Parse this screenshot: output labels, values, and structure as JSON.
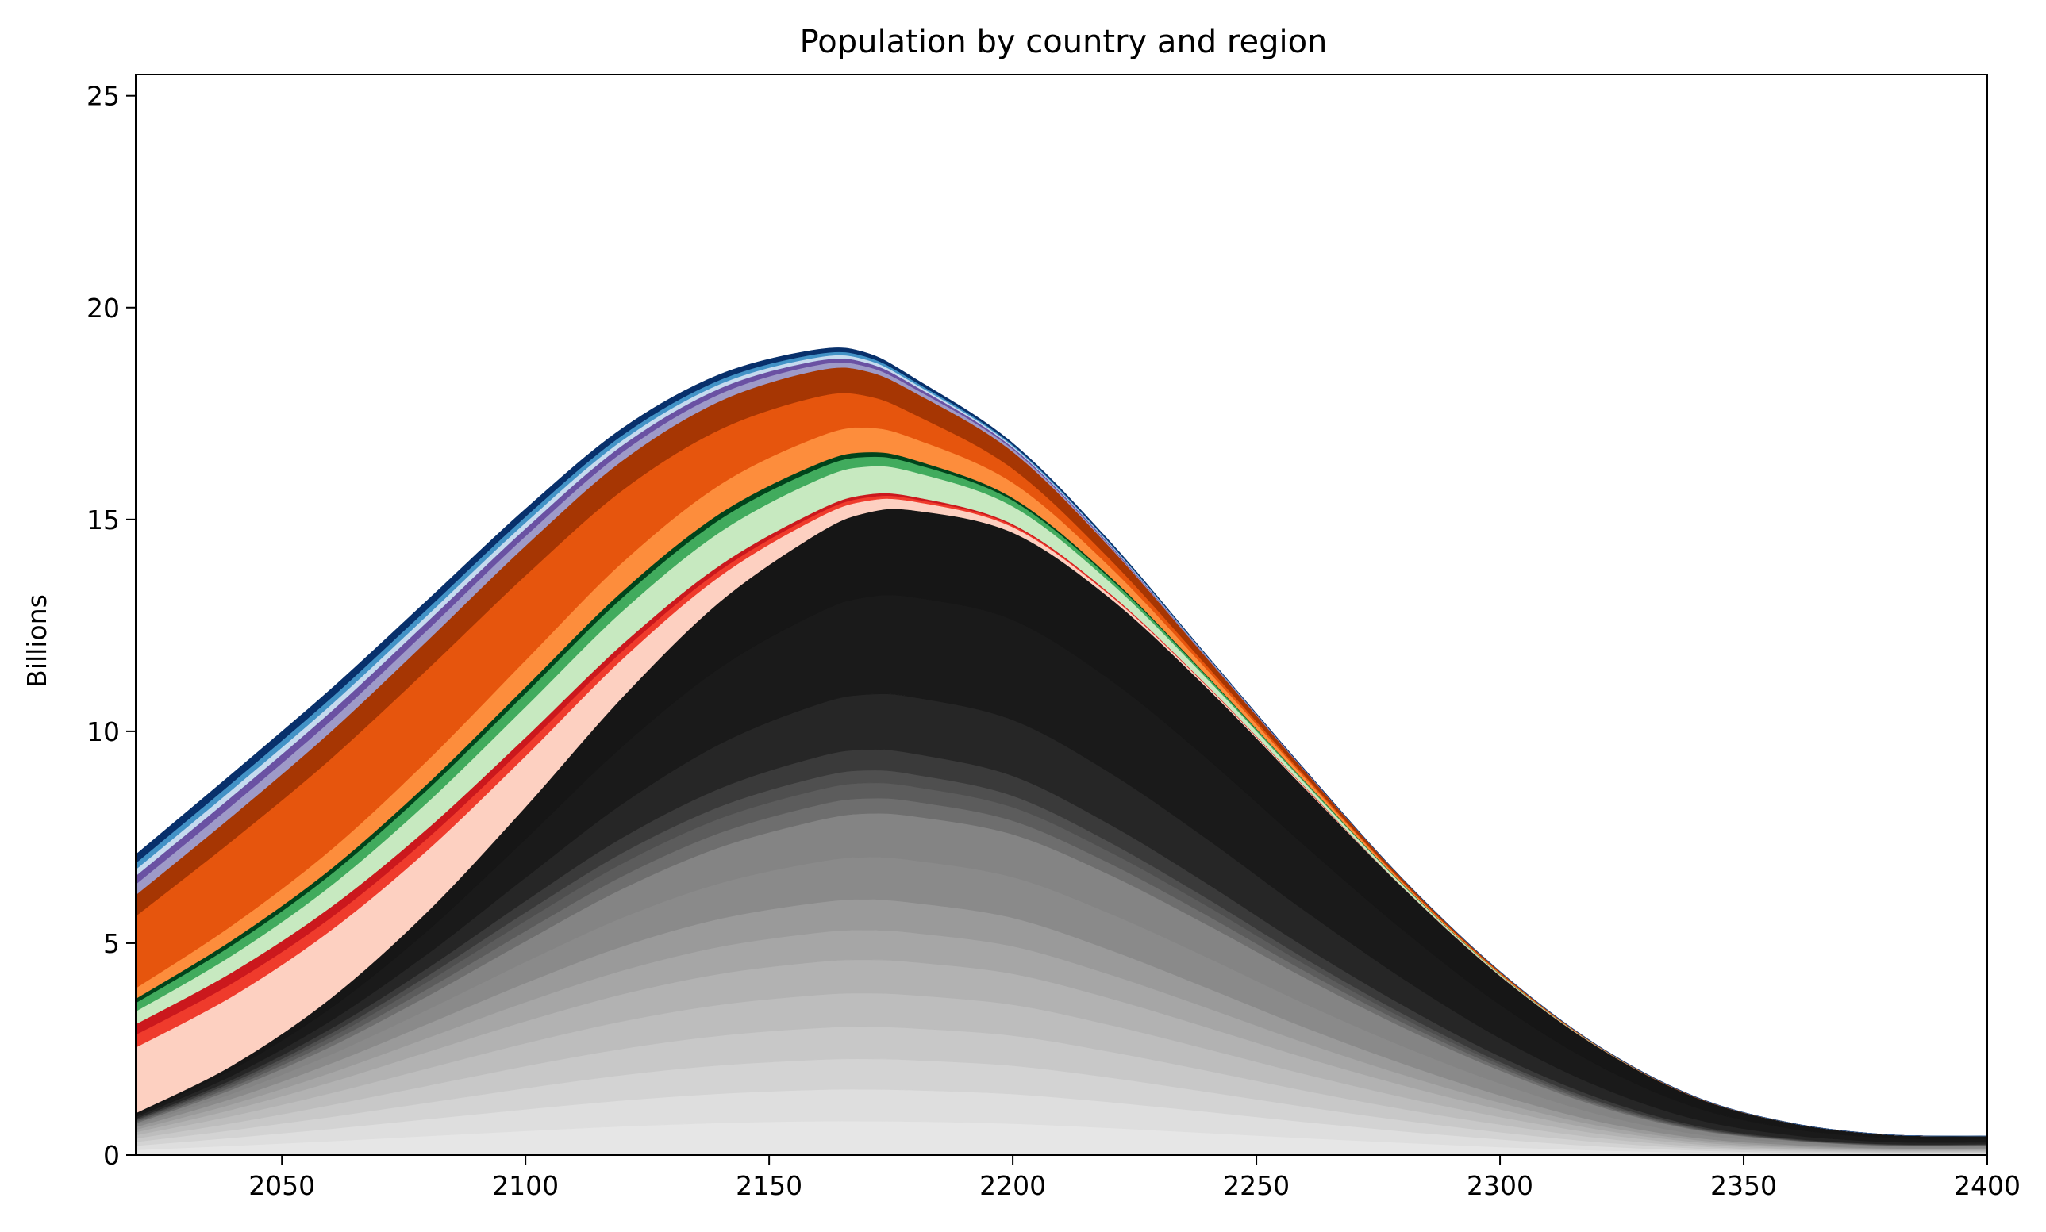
{
  "chart_data": {
    "type": "area",
    "stacked": true,
    "title": "Population by country and region",
    "xlabel": "",
    "ylabel": "Billions",
    "xlim": [
      2020,
      2400
    ],
    "ylim": [
      0,
      25.5
    ],
    "xticks": [
      2050,
      2100,
      2150,
      2200,
      2250,
      2300,
      2350,
      2400
    ],
    "yticks": [
      0,
      5,
      10,
      15,
      20,
      25
    ],
    "grid": false,
    "x": [
      2020,
      2040,
      2060,
      2080,
      2100,
      2120,
      2140,
      2160,
      2170,
      2180,
      2200,
      2220,
      2240,
      2260,
      2280,
      2300,
      2320,
      2340,
      2360,
      2380,
      2400
    ],
    "series": [
      {
        "color": "#e6e6e6",
        "values": [
          0.12,
          0.22,
          0.33,
          0.45,
          0.57,
          0.68,
          0.76,
          0.8,
          0.8,
          0.79,
          0.74,
          0.64,
          0.52,
          0.4,
          0.29,
          0.19,
          0.11,
          0.06,
          0.03,
          0.02,
          0.02
        ]
      },
      {
        "color": "#dedede",
        "values": [
          0.1,
          0.19,
          0.29,
          0.4,
          0.51,
          0.61,
          0.69,
          0.74,
          0.75,
          0.74,
          0.7,
          0.61,
          0.5,
          0.38,
          0.27,
          0.18,
          0.1,
          0.05,
          0.03,
          0.02,
          0.02
        ]
      },
      {
        "color": "#d3d3d3",
        "values": [
          0.09,
          0.18,
          0.28,
          0.39,
          0.5,
          0.6,
          0.67,
          0.71,
          0.72,
          0.71,
          0.67,
          0.58,
          0.47,
          0.36,
          0.26,
          0.17,
          0.1,
          0.05,
          0.03,
          0.02,
          0.02
        ]
      },
      {
        "color": "#c8c8c8",
        "values": [
          0.08,
          0.17,
          0.28,
          0.4,
          0.52,
          0.62,
          0.7,
          0.75,
          0.76,
          0.75,
          0.71,
          0.61,
          0.5,
          0.38,
          0.27,
          0.18,
          0.1,
          0.05,
          0.03,
          0.02,
          0.02
        ]
      },
      {
        "color": "#bdbdbd",
        "values": [
          0.08,
          0.17,
          0.28,
          0.41,
          0.54,
          0.65,
          0.73,
          0.78,
          0.79,
          0.78,
          0.73,
          0.63,
          0.51,
          0.39,
          0.28,
          0.18,
          0.1,
          0.05,
          0.03,
          0.02,
          0.02
        ]
      },
      {
        "color": "#b2b2b2",
        "values": [
          0.07,
          0.15,
          0.26,
          0.39,
          0.52,
          0.64,
          0.73,
          0.78,
          0.79,
          0.78,
          0.73,
          0.63,
          0.51,
          0.39,
          0.28,
          0.18,
          0.1,
          0.05,
          0.03,
          0.02,
          0.02
        ]
      },
      {
        "color": "#a6a6a6",
        "values": [
          0.06,
          0.13,
          0.22,
          0.33,
          0.45,
          0.56,
          0.64,
          0.69,
          0.7,
          0.69,
          0.65,
          0.56,
          0.46,
          0.35,
          0.25,
          0.16,
          0.09,
          0.05,
          0.03,
          0.02,
          0.02
        ]
      },
      {
        "color": "#9a9a9a",
        "values": [
          0.06,
          0.13,
          0.22,
          0.33,
          0.45,
          0.57,
          0.66,
          0.71,
          0.72,
          0.71,
          0.67,
          0.58,
          0.47,
          0.36,
          0.26,
          0.17,
          0.1,
          0.05,
          0.03,
          0.02,
          0.02
        ]
      },
      {
        "color": "#8a8a8a",
        "values": [
          0.05,
          0.12,
          0.21,
          0.34,
          0.5,
          0.68,
          0.84,
          0.96,
          1.0,
          1.0,
          0.96,
          0.86,
          0.72,
          0.56,
          0.41,
          0.28,
          0.17,
          0.09,
          0.05,
          0.03,
          0.03
        ]
      },
      {
        "color": "#848484",
        "values": [
          0.04,
          0.1,
          0.19,
          0.32,
          0.49,
          0.68,
          0.85,
          0.98,
          1.03,
          1.04,
          1.01,
          0.91,
          0.77,
          0.61,
          0.45,
          0.31,
          0.19,
          0.1,
          0.05,
          0.03,
          0.03
        ]
      },
      {
        "color": "#6e6e6e",
        "values": [
          0.03,
          0.06,
          0.11,
          0.17,
          0.24,
          0.3,
          0.34,
          0.36,
          0.36,
          0.35,
          0.32,
          0.27,
          0.22,
          0.16,
          0.11,
          0.07,
          0.04,
          0.02,
          0.01,
          0.01,
          0.01
        ]
      },
      {
        "color": "#5c5c5c",
        "values": [
          0.03,
          0.06,
          0.11,
          0.17,
          0.24,
          0.3,
          0.34,
          0.36,
          0.36,
          0.35,
          0.32,
          0.27,
          0.22,
          0.16,
          0.11,
          0.07,
          0.04,
          0.02,
          0.01,
          0.01,
          0.01
        ]
      },
      {
        "color": "#4f4f4f",
        "values": [
          0.02,
          0.05,
          0.09,
          0.14,
          0.2,
          0.25,
          0.28,
          0.3,
          0.3,
          0.29,
          0.27,
          0.23,
          0.18,
          0.14,
          0.1,
          0.06,
          0.04,
          0.02,
          0.01,
          0.01,
          0.01
        ]
      },
      {
        "color": "#3a3a3a",
        "values": [
          0.03,
          0.06,
          0.11,
          0.18,
          0.27,
          0.36,
          0.43,
          0.48,
          0.49,
          0.49,
          0.47,
          0.42,
          0.35,
          0.27,
          0.2,
          0.13,
          0.08,
          0.04,
          0.02,
          0.01,
          0.01
        ]
      },
      {
        "color": "#262626",
        "values": [
          0.04,
          0.1,
          0.19,
          0.34,
          0.55,
          0.8,
          1.05,
          1.24,
          1.3,
          1.33,
          1.32,
          1.22,
          1.05,
          0.85,
          0.63,
          0.43,
          0.27,
          0.15,
          0.08,
          0.05,
          0.04
        ]
      },
      {
        "color": "#1a1a1a",
        "values": [
          0.05,
          0.14,
          0.3,
          0.55,
          0.91,
          1.36,
          1.8,
          2.16,
          2.3,
          2.36,
          2.36,
          2.2,
          1.9,
          1.54,
          1.15,
          0.79,
          0.5,
          0.28,
          0.15,
          0.09,
          0.08
        ]
      },
      {
        "color": "#161616",
        "values": [
          0.04,
          0.1,
          0.23,
          0.45,
          0.76,
          1.16,
          1.56,
          1.87,
          1.99,
          2.05,
          2.06,
          1.92,
          1.66,
          1.35,
          1.0,
          0.68,
          0.43,
          0.24,
          0.13,
          0.08,
          0.07
        ]
      },
      {
        "color": "#fdd0c1",
        "values": [
          1.55,
          1.63,
          1.6,
          1.45,
          1.2,
          0.9,
          0.6,
          0.37,
          0.28,
          0.21,
          0.13,
          0.07,
          0.04,
          0.02,
          0.01,
          0.01,
          0.0,
          0.0,
          0.0,
          0.0,
          0.0
        ]
      },
      {
        "color": "#ef3b2c",
        "values": [
          0.3,
          0.31,
          0.3,
          0.28,
          0.24,
          0.19,
          0.14,
          0.1,
          0.08,
          0.06,
          0.04,
          0.02,
          0.01,
          0.01,
          0.0,
          0.0,
          0.0,
          0.0,
          0.0,
          0.0,
          0.0
        ]
      },
      {
        "color": "#cb181d",
        "values": [
          0.25,
          0.26,
          0.25,
          0.23,
          0.2,
          0.16,
          0.12,
          0.08,
          0.07,
          0.05,
          0.03,
          0.02,
          0.01,
          0.01,
          0.0,
          0.0,
          0.0,
          0.0,
          0.0,
          0.0,
          0.0
        ]
      },
      {
        "color": "#c7e9c0",
        "values": [
          0.3,
          0.4,
          0.5,
          0.62,
          0.72,
          0.78,
          0.78,
          0.72,
          0.66,
          0.58,
          0.42,
          0.27,
          0.16,
          0.09,
          0.05,
          0.02,
          0.01,
          0.0,
          0.0,
          0.0,
          0.0
        ]
      },
      {
        "color": "#41ab5d",
        "values": [
          0.2,
          0.24,
          0.27,
          0.3,
          0.32,
          0.32,
          0.3,
          0.26,
          0.23,
          0.2,
          0.14,
          0.09,
          0.05,
          0.03,
          0.01,
          0.01,
          0.0,
          0.0,
          0.0,
          0.0,
          0.0
        ]
      },
      {
        "color": "#00441b",
        "values": [
          0.1,
          0.12,
          0.13,
          0.14,
          0.15,
          0.15,
          0.14,
          0.12,
          0.11,
          0.09,
          0.06,
          0.04,
          0.02,
          0.01,
          0.01,
          0.0,
          0.0,
          0.0,
          0.0,
          0.0,
          0.0
        ]
      },
      {
        "color": "#fd8d3c",
        "values": [
          0.25,
          0.35,
          0.45,
          0.55,
          0.63,
          0.68,
          0.68,
          0.63,
          0.58,
          0.5,
          0.36,
          0.23,
          0.14,
          0.08,
          0.04,
          0.02,
          0.01,
          0.0,
          0.0,
          0.0,
          0.0
        ]
      },
      {
        "color": "#e6550d",
        "values": [
          1.7,
          2.0,
          2.15,
          2.15,
          2.0,
          1.7,
          1.3,
          0.95,
          0.75,
          0.57,
          0.33,
          0.18,
          0.09,
          0.05,
          0.02,
          0.01,
          0.0,
          0.0,
          0.0,
          0.0,
          0.0
        ]
      },
      {
        "color": "#a63603",
        "values": [
          0.5,
          0.58,
          0.64,
          0.68,
          0.7,
          0.7,
          0.67,
          0.62,
          0.58,
          0.52,
          0.4,
          0.28,
          0.18,
          0.11,
          0.06,
          0.03,
          0.01,
          0.01,
          0.0,
          0.0,
          0.0
        ]
      },
      {
        "color": "#9e9ac8",
        "values": [
          0.25,
          0.26,
          0.26,
          0.25,
          0.23,
          0.2,
          0.17,
          0.13,
          0.11,
          0.09,
          0.06,
          0.03,
          0.02,
          0.01,
          0.0,
          0.0,
          0.0,
          0.0,
          0.0,
          0.0,
          0.0
        ]
      },
      {
        "color": "#6a51a3",
        "values": [
          0.2,
          0.21,
          0.21,
          0.2,
          0.18,
          0.16,
          0.13,
          0.1,
          0.09,
          0.07,
          0.04,
          0.03,
          0.01,
          0.01,
          0.0,
          0.0,
          0.0,
          0.0,
          0.0,
          0.0,
          0.0
        ]
      },
      {
        "color": "#c6dbef",
        "values": [
          0.15,
          0.16,
          0.16,
          0.15,
          0.14,
          0.12,
          0.1,
          0.08,
          0.07,
          0.05,
          0.03,
          0.02,
          0.01,
          0.0,
          0.0,
          0.0,
          0.0,
          0.0,
          0.0,
          0.0,
          0.0
        ]
      },
      {
        "color": "#4292c6",
        "values": [
          0.15,
          0.16,
          0.16,
          0.15,
          0.14,
          0.12,
          0.1,
          0.08,
          0.07,
          0.05,
          0.03,
          0.02,
          0.01,
          0.0,
          0.0,
          0.0,
          0.0,
          0.0,
          0.0,
          0.0,
          0.0
        ]
      },
      {
        "color": "#08306b",
        "values": [
          0.2,
          0.21,
          0.21,
          0.2,
          0.18,
          0.16,
          0.13,
          0.1,
          0.09,
          0.07,
          0.04,
          0.03,
          0.01,
          0.01,
          0.0,
          0.0,
          0.0,
          0.0,
          0.0,
          0.0,
          0.0
        ]
      }
    ]
  }
}
